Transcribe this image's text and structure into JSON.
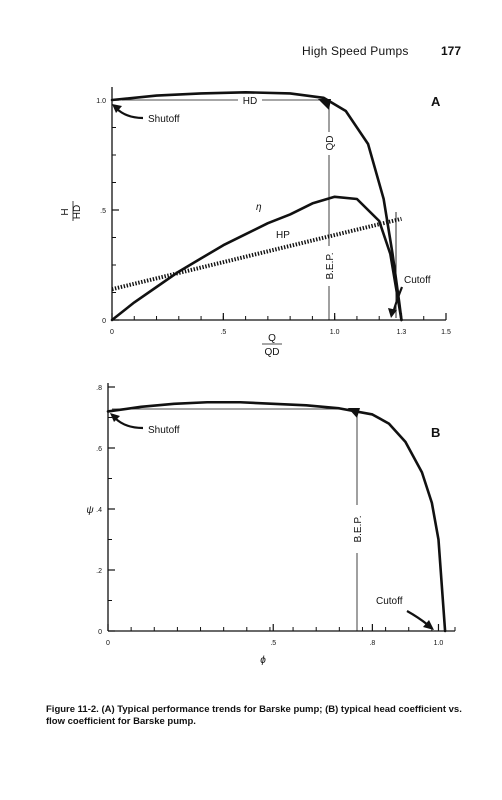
{
  "header": {
    "title": "High Speed Pumps",
    "page_number": "177"
  },
  "caption": {
    "label": "Figure 11-2.",
    "text": "(A) Typical performance trends for Barske pump; (B) typical head coefficient vs. flow coefficient for Barske pump."
  },
  "chart_data": [
    {
      "type": "line",
      "panel": "A",
      "xlabel": {
        "numerator": "Q",
        "denominator": "QD"
      },
      "ylabel": {
        "numerator": "H",
        "denominator": "HD"
      },
      "xlim": [
        0,
        1.5
      ],
      "ylim": [
        0,
        1.0
      ],
      "x_tick_values": [
        0,
        0.5,
        1.0,
        1.3,
        1.5
      ],
      "x_tick_labels": [
        "0",
        ".5",
        "1.0",
        "1.3",
        "1.5"
      ],
      "y_tick_values": [
        0,
        0.5,
        1.0
      ],
      "y_tick_labels": [
        "0",
        ".5",
        "1.0"
      ],
      "series": [
        {
          "name": "H_D",
          "style": "solid-thick",
          "x": [
            0,
            0.2,
            0.4,
            0.6,
            0.8,
            0.95,
            1.05,
            1.15,
            1.22,
            1.26,
            1.29,
            1.3
          ],
          "y": [
            1.0,
            1.02,
            1.03,
            1.035,
            1.03,
            1.01,
            0.95,
            0.8,
            0.55,
            0.3,
            0.08,
            0
          ]
        },
        {
          "name": "η",
          "style": "solid-thick",
          "x": [
            0,
            0.1,
            0.2,
            0.3,
            0.4,
            0.5,
            0.6,
            0.7,
            0.8,
            0.9,
            1.0,
            1.1,
            1.2,
            1.25,
            1.3
          ],
          "y": [
            0,
            0.08,
            0.15,
            0.22,
            0.28,
            0.34,
            0.39,
            0.44,
            0.48,
            0.53,
            0.56,
            0.55,
            0.45,
            0.3,
            0
          ]
        },
        {
          "name": "HP",
          "style": "dotted-thick",
          "x": [
            0,
            1.3
          ],
          "y": [
            0.14,
            0.46
          ]
        }
      ],
      "annotations": [
        {
          "text": "Shutoff"
        },
        {
          "text": "Cutoff"
        },
        {
          "text": "B.E.P."
        },
        {
          "text": "A"
        }
      ],
      "labels": {
        "hd": "HD",
        "qd": "QD",
        "eta": "η",
        "hp": "HP",
        "bep": "B.E.P.",
        "shutoff": "Shutoff",
        "cutoff": "Cutoff",
        "panel": "A"
      }
    },
    {
      "type": "line",
      "panel": "B",
      "xlabel": "ϕ",
      "ylabel": "ψ",
      "xlim": [
        0,
        1.05
      ],
      "ylim": [
        0,
        0.8
      ],
      "x_tick_values": [
        0,
        0.5,
        0.8,
        1.0
      ],
      "x_tick_labels": [
        "0",
        ".5",
        ".8",
        "1.0"
      ],
      "y_tick_values": [
        0,
        0.2,
        0.4,
        0.6,
        0.8
      ],
      "y_tick_labels": [
        "0",
        ".2",
        ".4",
        ".6",
        ".8"
      ],
      "series": [
        {
          "name": "ψ",
          "style": "solid-thick",
          "x": [
            0,
            0.1,
            0.2,
            0.3,
            0.4,
            0.5,
            0.6,
            0.7,
            0.8,
            0.85,
            0.9,
            0.95,
            0.98,
            1.0,
            1.01,
            1.02
          ],
          "y": [
            0.72,
            0.735,
            0.745,
            0.75,
            0.75,
            0.745,
            0.74,
            0.73,
            0.71,
            0.68,
            0.62,
            0.52,
            0.42,
            0.3,
            0.15,
            0
          ]
        }
      ],
      "annotations": [
        {
          "text": "Shutoff"
        },
        {
          "text": "Cutoff"
        },
        {
          "text": "B.E.P."
        },
        {
          "text": "B"
        }
      ],
      "labels": {
        "bep": "B.E.P.",
        "shutoff": "Shutoff",
        "cutoff": "Cutoff",
        "panel": "B"
      }
    }
  ]
}
